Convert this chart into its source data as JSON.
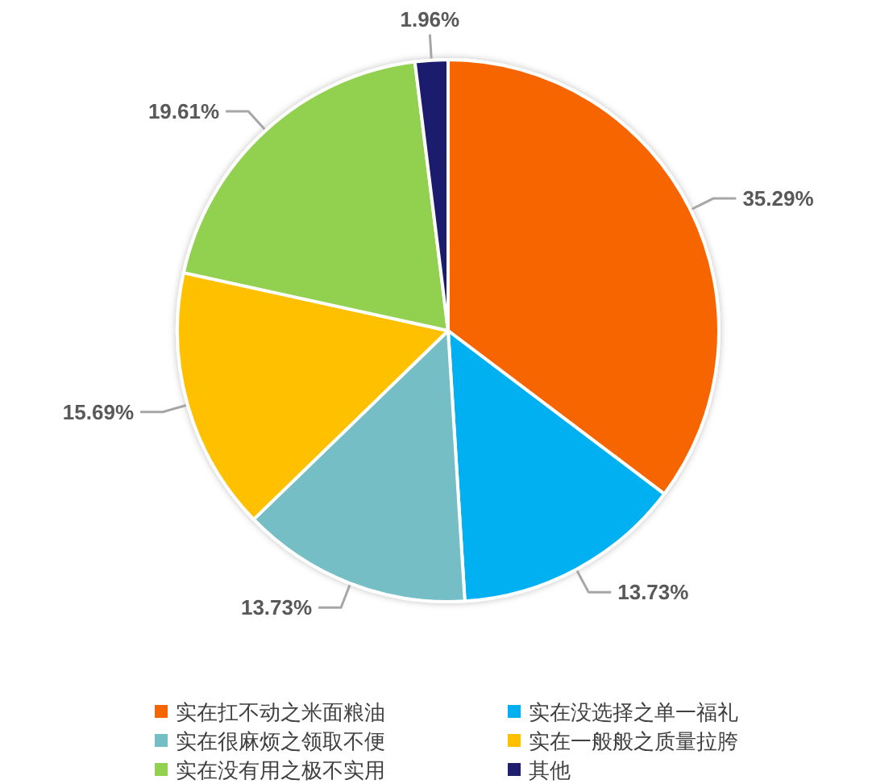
{
  "chart_data": {
    "type": "pie",
    "categories": [
      "实在扛不动之米面粮油",
      "实在没选择之单一福礼",
      "实在很麻烦之领取不便",
      "实在一般般之质量拉胯",
      "实在没有用之极不实用",
      "其他"
    ],
    "values": [
      35.29,
      13.73,
      13.73,
      15.69,
      19.61,
      1.96
    ],
    "colors": [
      "#f66505",
      "#00b0f0",
      "#74bec6",
      "#ffc000",
      "#92d050",
      "#1f1f6e"
    ],
    "value_labels": [
      "35.29%",
      "13.73%",
      "13.73%",
      "15.69%",
      "19.61%",
      "1.96%"
    ],
    "legend": "bottom"
  }
}
